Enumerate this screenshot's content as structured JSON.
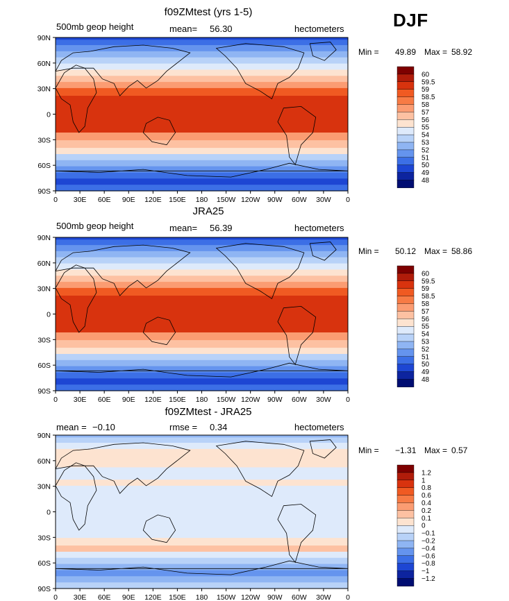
{
  "season": "DJF",
  "lat_labels": [
    "90N",
    "60N",
    "30N",
    "0",
    "30S",
    "60S",
    "90S"
  ],
  "lon_labels": [
    "0",
    "30E",
    "60E",
    "90E",
    "120E",
    "150E",
    "180",
    "150W",
    "120W",
    "90W",
    "60W",
    "30W",
    "0"
  ],
  "panels": [
    {
      "title": "f09ZMtest (yrs 1-5)",
      "left_label": "500mb geop height",
      "stat1_label": "mean=",
      "stat1_value": "56.30",
      "stat2_label": "",
      "stat2_value": "",
      "units": "hectometers",
      "min_label": "Min =",
      "min_value": "49.89",
      "max_label": "Max =",
      "max_value": "58.92",
      "colorbar_labels": [
        "60",
        "59.5",
        "59",
        "58.5",
        "58",
        "57",
        "56",
        "55",
        "54",
        "53",
        "52",
        "51",
        "50",
        "49",
        "48"
      ],
      "colors": [
        "#7e0000",
        "#b01c0a",
        "#d8330e",
        "#f05a22",
        "#f77b45",
        "#fb9c72",
        "#fdc1a2",
        "#fde3d0",
        "#deeafb",
        "#b8d2f8",
        "#8fb5f3",
        "#6594ee",
        "#3c6fe6",
        "#1d46d3",
        "#0d249f",
        "#000d72"
      ]
    },
    {
      "title": "JRA25",
      "left_label": "500mb geop height",
      "stat1_label": "mean=",
      "stat1_value": "56.39",
      "stat2_label": "",
      "stat2_value": "",
      "units": "hectometers",
      "min_label": "Min =",
      "min_value": "50.12",
      "max_label": "Max =",
      "max_value": "58.86",
      "colorbar_labels": [
        "60",
        "59.5",
        "59",
        "58.5",
        "58",
        "57",
        "56",
        "55",
        "54",
        "53",
        "52",
        "51",
        "50",
        "49",
        "48"
      ],
      "colors": [
        "#7e0000",
        "#b01c0a",
        "#d8330e",
        "#f05a22",
        "#f77b45",
        "#fb9c72",
        "#fdc1a2",
        "#fde3d0",
        "#deeafb",
        "#b8d2f8",
        "#8fb5f3",
        "#6594ee",
        "#3c6fe6",
        "#1d46d3",
        "#0d249f",
        "#000d72"
      ]
    },
    {
      "title": "f09ZMtest - JRA25",
      "left_label": "",
      "stat1_label": "mean =",
      "stat1_value": "−0.10",
      "stat2_label": "rmse =",
      "stat2_value": "0.34",
      "units": "hectometers",
      "min_label": "Min =",
      "min_value": "−1.31",
      "max_label": "Max =",
      "max_value": "0.57",
      "colorbar_labels": [
        "1.2",
        "1",
        "0.8",
        "0.6",
        "0.4",
        "0.2",
        "0.1",
        "0",
        "−0.1",
        "−0.2",
        "−0.4",
        "−0.6",
        "−0.8",
        "−1",
        "−1.2"
      ],
      "colors": [
        "#7e0000",
        "#b01c0a",
        "#d8330e",
        "#f05a22",
        "#f77b45",
        "#fb9c72",
        "#fdc1a2",
        "#fde3d0",
        "#deeafb",
        "#b8d2f8",
        "#8fb5f3",
        "#6594ee",
        "#3c6fe6",
        "#1d46d3",
        "#0d249f",
        "#000d72"
      ]
    }
  ]
}
